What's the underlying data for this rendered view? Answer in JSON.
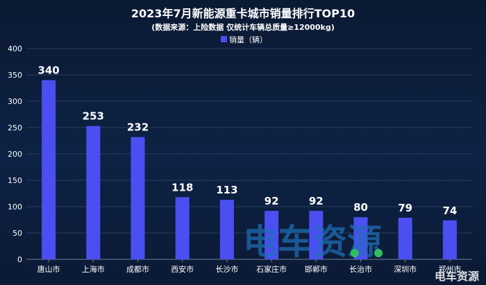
{
  "colors": {
    "bar": "#4b4ff2",
    "grid": "#2a3d5e",
    "axis": "#6f8099",
    "text": "#ffffff",
    "watermark": "#1f6fb8",
    "watermark_wheel": "#2fbf5f"
  },
  "watermark": {
    "main": "电车资源",
    "corner": "电车资源"
  },
  "chart_data": {
    "type": "bar",
    "title": "2023年7月新能源重卡城市销量排行TOP10",
    "subtitle": "(数据来源：上险数据 仅统计车辆总质量≥12000kg)",
    "legend": "销量（辆）",
    "legend_position": "top-center",
    "grid": true,
    "categories": [
      "唐山市",
      "上海市",
      "成都市",
      "西安市",
      "长沙市",
      "石家庄市",
      "邯郸市",
      "长治市",
      "深圳市",
      "郑州市"
    ],
    "series": [
      {
        "name": "销量（辆）",
        "values": [
          340,
          253,
          232,
          118,
          113,
          92,
          92,
          80,
          79,
          74
        ]
      }
    ],
    "data_labels": [
      "340",
      "253",
      "232",
      "118",
      "113",
      "92",
      "92",
      "80",
      "79",
      "74"
    ],
    "ylim": [
      0,
      400
    ],
    "yticks": [
      0,
      50,
      100,
      150,
      200,
      250,
      300,
      350,
      400
    ],
    "ytick_labels": [
      "0",
      "50",
      "100",
      "150",
      "200",
      "250",
      "300",
      "350",
      "400"
    ],
    "xlabel": "",
    "ylabel": ""
  }
}
